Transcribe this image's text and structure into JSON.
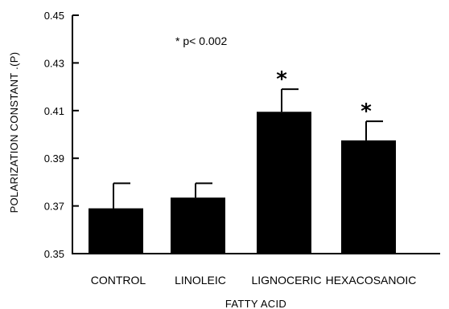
{
  "chart_data": {
    "type": "bar",
    "title": "",
    "xlabel": "FATTY ACID",
    "ylabel": "POLARIZATION CONSTANT .(P)",
    "ylim": [
      0.35,
      0.45
    ],
    "yticks": [
      "0.35",
      "0.37",
      "0.39",
      "0.41",
      "0.43",
      "0.45"
    ],
    "categories": [
      "CONTROL",
      "LINOLEIC",
      "LIGNOCERIC",
      "HEXACOSANOIC"
    ],
    "values": [
      0.369,
      0.3735,
      0.4095,
      0.3975
    ],
    "errors": [
      0.0105,
      0.006,
      0.0095,
      0.008
    ],
    "significance": [
      "",
      "",
      "*",
      "*"
    ],
    "annotation": "* p< 0.002",
    "grid": false,
    "colors": {
      "bar": "#000000",
      "background": "#ffffff"
    }
  }
}
